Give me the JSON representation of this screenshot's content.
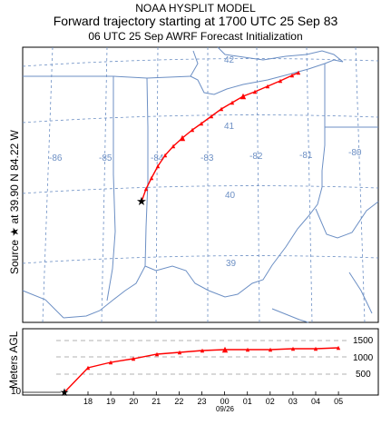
{
  "header": {
    "line1": "NOAA HYSPLIT MODEL",
    "line2": "Forward trajectory starting at 1700 UTC 25 Sep 83",
    "line3": "06 UTC 25 Sep    AWRF  Forecast Initialization"
  },
  "side": {
    "source_label": "Source ★  at    39.90 N    84.22 W",
    "height_label": "Meters AGL"
  },
  "map": {
    "lat_labels": [
      "42",
      "41",
      "40",
      "39"
    ],
    "lon_labels": [
      "-86",
      "-85",
      "-84",
      "-83",
      "-82",
      "-81",
      "-80"
    ],
    "colors": {
      "grid": "#6c8fc4",
      "boundary": "#6c8fc4",
      "trajectory": "#ff0000",
      "source": "#000000"
    },
    "source": {
      "lat": 39.9,
      "lon": -84.22
    }
  },
  "profile": {
    "y_ticks": [
      "1500",
      "1000",
      "500"
    ],
    "start_label": "10",
    "x_ticks": [
      "18",
      "19",
      "20",
      "21",
      "22",
      "23",
      "00",
      "01",
      "02",
      "03",
      "04",
      "05"
    ],
    "date_label": "09/26"
  }
}
